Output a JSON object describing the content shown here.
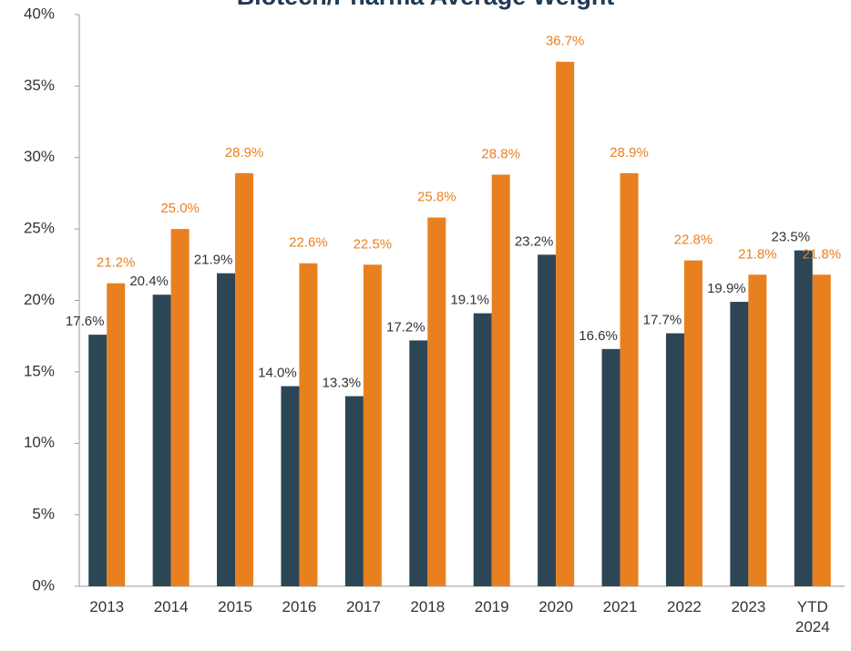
{
  "chart_data": {
    "type": "bar",
    "title": "Biotech/Pharma Average Weight",
    "categories": [
      "2013",
      "2014",
      "2015",
      "2016",
      "2017",
      "2018",
      "2019",
      "2020",
      "2021",
      "2022",
      "2023",
      "YTD 2024"
    ],
    "series": [
      {
        "color": "#2c4656",
        "values": [
          17.6,
          20.4,
          21.9,
          14.0,
          13.3,
          17.2,
          19.1,
          23.2,
          16.6,
          17.7,
          19.9,
          23.5
        ],
        "value_labels": [
          "17.6%",
          "20.4%",
          "21.9%",
          "14.0%",
          "13.3%",
          "17.2%",
          "19.1%",
          "23.2%",
          "16.6%",
          "17.7%",
          "19.9%",
          "23.5%"
        ]
      },
      {
        "color": "#e9801f",
        "values": [
          21.2,
          25.0,
          28.9,
          22.6,
          22.5,
          25.8,
          28.8,
          36.7,
          28.9,
          22.8,
          21.8,
          21.8
        ],
        "value_labels": [
          "21.2%",
          "25.0%",
          "28.9%",
          "22.6%",
          "22.5%",
          "25.8%",
          "28.8%",
          "36.7%",
          "28.9%",
          "22.8%",
          "21.8%",
          "21.8%"
        ]
      }
    ],
    "ylim": [
      0,
      40
    ],
    "yticks": [
      {
        "value": 0,
        "label": "0%"
      },
      {
        "value": 5,
        "label": "5%"
      },
      {
        "value": 10,
        "label": "10%"
      },
      {
        "value": 15,
        "label": "15%"
      },
      {
        "value": 20,
        "label": "20%"
      },
      {
        "value": 25,
        "label": "25%"
      },
      {
        "value": 30,
        "label": "30%"
      },
      {
        "value": 35,
        "label": "35%"
      },
      {
        "value": 40,
        "label": "40%"
      }
    ]
  }
}
